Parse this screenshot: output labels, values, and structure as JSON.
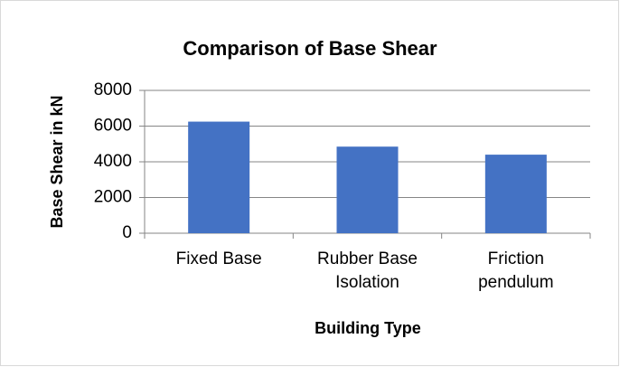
{
  "chart_data": {
    "type": "bar",
    "title": "Comparison of Base Shear",
    "x_label": "Building Type",
    "y_label": "Base Shear in kN",
    "categories": [
      "Fixed Base",
      "Rubber Base Isolation",
      "Friction pendulum"
    ],
    "values": [
      6250,
      4850,
      4400
    ],
    "color": "#4472c4",
    "ylim": [
      0,
      8000
    ],
    "yticks": [
      0,
      2000,
      4000,
      6000,
      8000
    ],
    "grid": true
  }
}
